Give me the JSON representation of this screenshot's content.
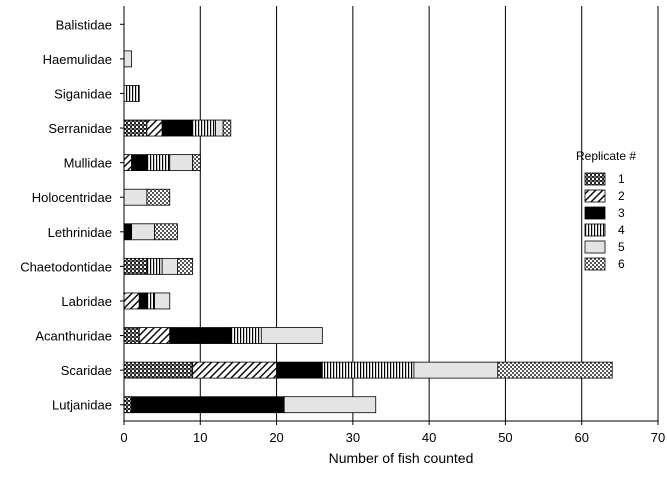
{
  "chart_data": {
    "type": "bar",
    "orientation": "horizontal",
    "stacked": true,
    "xlabel": "Number of fish counted",
    "ylabel": "",
    "xlim": [
      0,
      70
    ],
    "xticks": [
      0,
      10,
      20,
      30,
      40,
      50,
      60,
      70
    ],
    "grid": "vertical lines at major ticks",
    "legend_title": "Replicate #",
    "legend_position": "right",
    "categories": [
      "Balistidae",
      "Haemulidae",
      "Siganidae",
      "Serranidae",
      "Mullidae",
      "Holocentridae",
      "Lethrinidae",
      "Chaetodontidae",
      "Labridae",
      "Acanthuridae",
      "Scaridae",
      "Lutjanidae"
    ],
    "series": [
      {
        "name": "1",
        "pattern": "crosshatch-dense",
        "values": [
          0,
          0,
          0,
          3,
          0,
          0,
          0,
          3,
          0,
          2,
          9,
          1
        ]
      },
      {
        "name": "2",
        "pattern": "diagonal",
        "values": [
          0,
          0,
          0,
          2,
          1,
          0,
          0,
          0,
          2,
          4,
          11,
          0
        ]
      },
      {
        "name": "3",
        "pattern": "solid-black",
        "values": [
          0,
          0,
          0,
          4,
          2,
          0,
          1,
          0,
          1,
          8,
          6,
          20
        ]
      },
      {
        "name": "4",
        "pattern": "vertical-lines",
        "values": [
          0,
          0,
          2,
          3,
          3,
          0,
          0,
          2,
          1,
          4,
          12,
          0
        ]
      },
      {
        "name": "5",
        "pattern": "light-gray",
        "values": [
          0,
          1,
          0,
          1,
          3,
          3,
          3,
          2,
          2,
          8,
          11,
          12
        ]
      },
      {
        "name": "6",
        "pattern": "checker",
        "values": [
          0,
          0,
          0,
          1,
          1,
          3,
          3,
          2,
          0,
          0,
          15,
          0
        ]
      }
    ]
  }
}
